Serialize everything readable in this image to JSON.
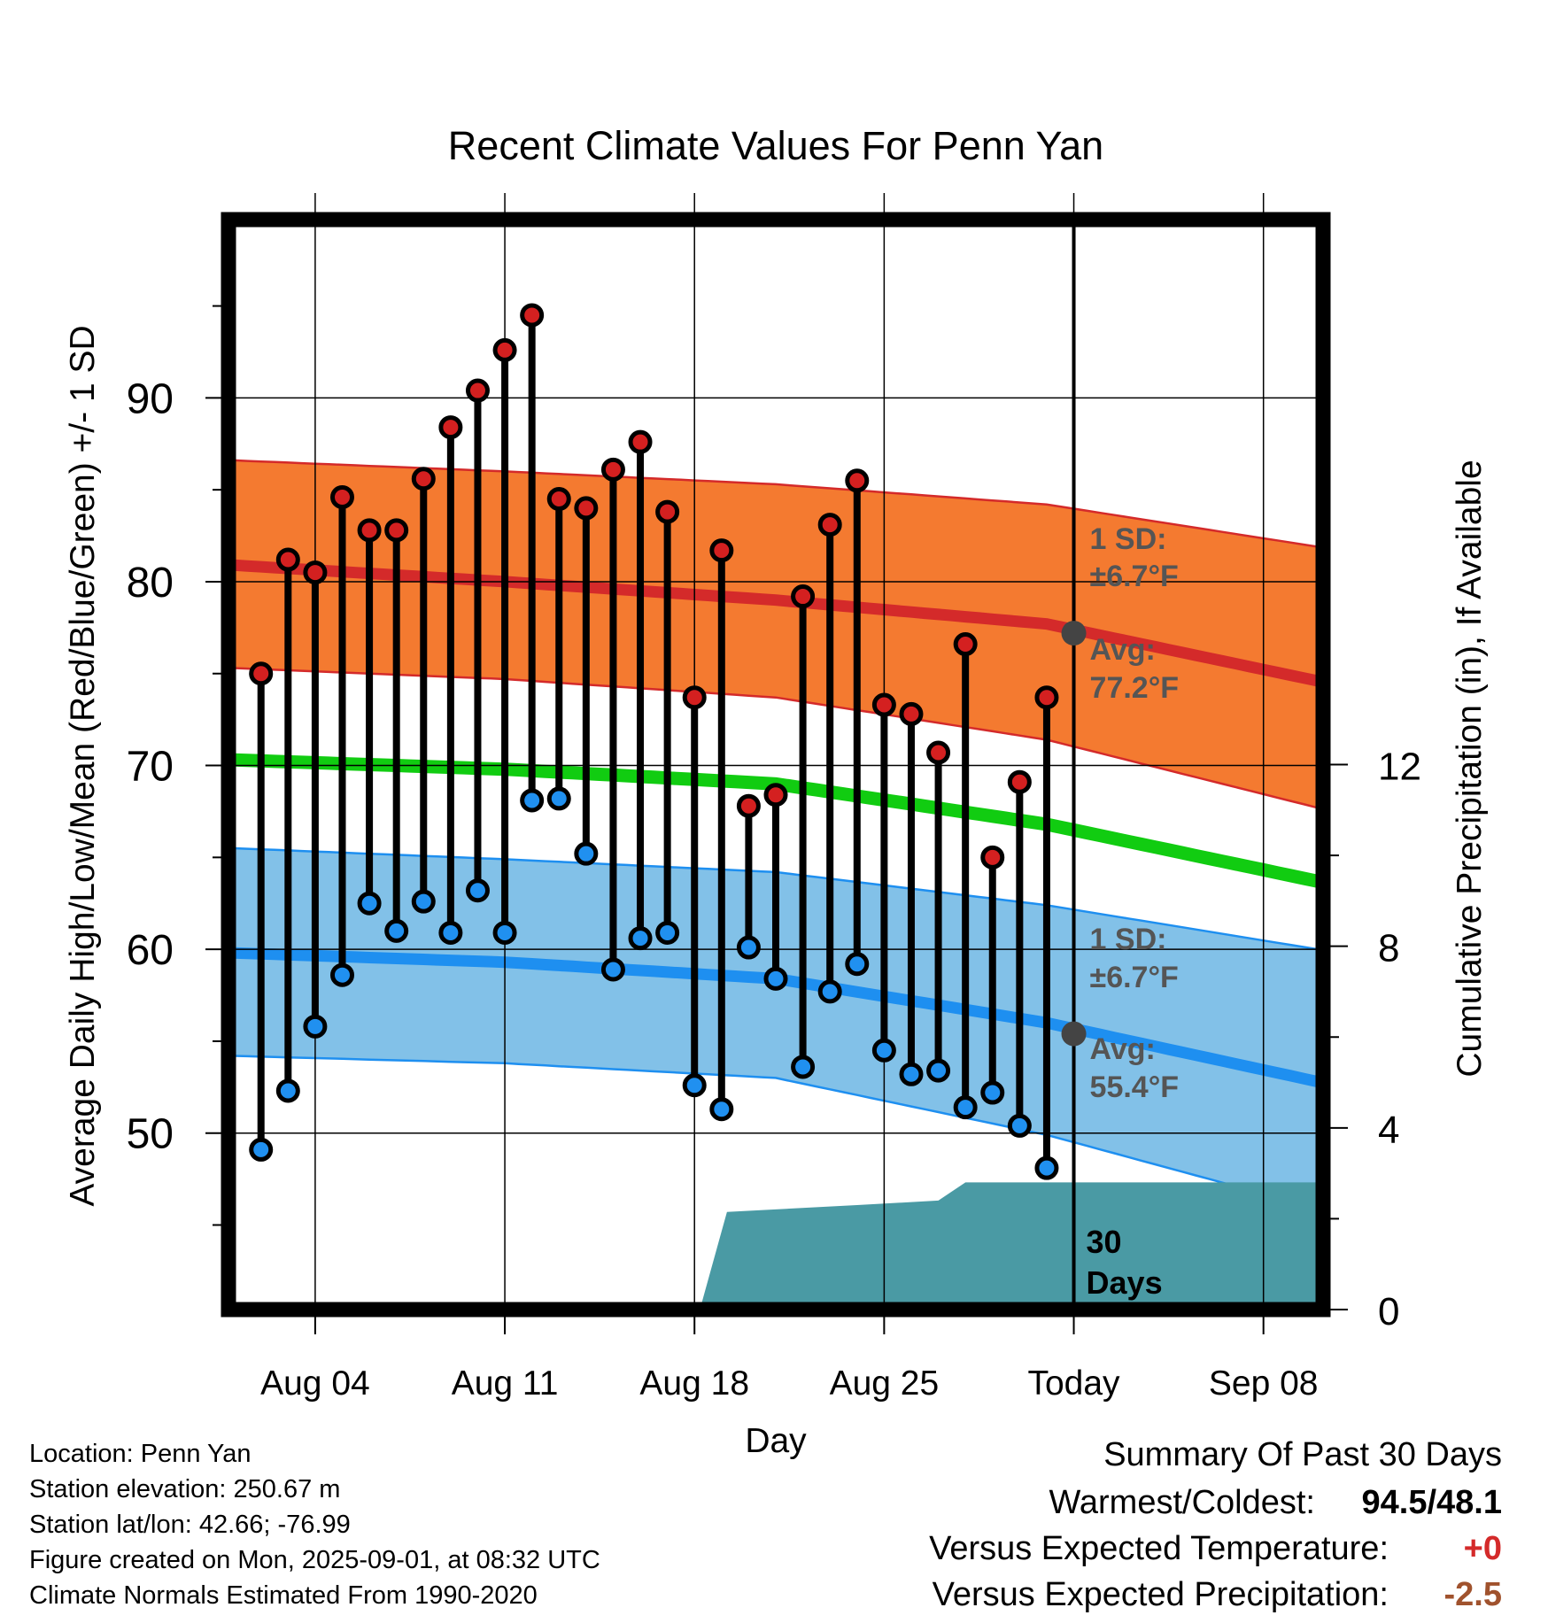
{
  "chart_data": {
    "type": "line",
    "title": "Recent Climate Values For Penn Yan",
    "xlabel": "Day",
    "ylabel": "Average Daily High/Low/Mean (Red/Blue/Green) +/- 1 SD",
    "y2label": "Cumulative Precipitation (in), If Available",
    "x_tick_labels": [
      "Aug 04",
      "Aug 11",
      "Aug 18",
      "Aug 25",
      "Today",
      "Sep 08"
    ],
    "x_tick_days": [
      4,
      11,
      18,
      25,
      32,
      39
    ],
    "xlim": [
      0.8,
      41.2
    ],
    "y_ticks": [
      50,
      60,
      70,
      80,
      90
    ],
    "ylim": [
      40.4,
      99.7
    ],
    "y_grid": [
      50,
      60,
      70,
      80,
      90
    ],
    "y2_ticks": [
      0,
      4,
      8,
      12
    ],
    "y2lim": [
      0,
      24
    ],
    "today_day": 32,
    "today_label_lines": [
      "30",
      "Days"
    ],
    "days": [
      2,
      3,
      4,
      5,
      6,
      7,
      8,
      9,
      10,
      11,
      12,
      13,
      14,
      15,
      16,
      17,
      18,
      19,
      20,
      21,
      22,
      23,
      24,
      25,
      26,
      27,
      28,
      29,
      30,
      31
    ],
    "daily_high": [
      75.0,
      81.2,
      80.5,
      84.6,
      82.8,
      82.8,
      85.6,
      88.4,
      90.4,
      92.6,
      94.5,
      84.5,
      84.0,
      86.1,
      87.6,
      83.8,
      73.7,
      81.7,
      67.8,
      68.4,
      79.2,
      83.1,
      85.5,
      73.3,
      72.8,
      70.7,
      76.6,
      65.0,
      69.1,
      73.7
    ],
    "daily_low": [
      49.1,
      52.3,
      55.8,
      58.6,
      62.5,
      61.0,
      62.6,
      60.9,
      63.2,
      60.9,
      68.1,
      68.2,
      65.2,
      58.9,
      60.6,
      60.9,
      52.6,
      51.3,
      60.1,
      58.4,
      53.6,
      57.7,
      59.2,
      54.5,
      53.2,
      53.4,
      51.4,
      52.2,
      50.4,
      48.1
    ],
    "normal_high": {
      "x": [
        1,
        11,
        21,
        31,
        41
      ],
      "avg": [
        80.9,
        80.0,
        79.0,
        77.7,
        74.6
      ],
      "upper": [
        86.6,
        86.0,
        85.3,
        84.2,
        81.9
      ],
      "lower": [
        75.3,
        74.7,
        73.7,
        71.4,
        67.7
      ]
    },
    "normal_low": {
      "x": [
        1,
        11,
        21,
        31,
        41
      ],
      "avg": [
        59.8,
        59.3,
        58.4,
        56.0,
        52.8
      ],
      "upper": [
        65.5,
        64.9,
        64.2,
        62.4,
        60.0
      ],
      "lower": [
        54.2,
        53.8,
        53.0,
        49.9,
        45.9
      ]
    },
    "normal_mean": {
      "x": [
        1,
        11,
        21,
        31,
        41
      ],
      "avg": [
        70.3,
        69.8,
        69.0,
        66.8,
        63.7
      ]
    },
    "precip_cumulative": {
      "x": [
        18.2,
        19.2,
        24.0,
        27.0,
        28.0,
        41.0
      ],
      "y": [
        0.0,
        2.15,
        2.3,
        2.4,
        2.8,
        2.8
      ]
    },
    "annotations": {
      "high_sd": [
        "1 SD:",
        "±6.7°F"
      ],
      "high_avg": [
        "Avg:",
        "77.2°F"
      ],
      "low_sd": [
        "1 SD:",
        "±6.7°F"
      ],
      "low_avg": [
        "Avg:",
        "55.4°F"
      ],
      "today_high_avg": 77.2,
      "today_low_avg": 55.4
    },
    "colors": {
      "high_band": "#f47a30",
      "high_line": "#d42a2a",
      "low_band": "#82c1e8",
      "low_line": "#1e8ff0",
      "mean_line": "#11cc11",
      "precip": "#4a9aa4",
      "high_dot": "#d42020",
      "low_dot": "#2090f0",
      "annotation_text": "#555555",
      "today_marker": "#444444"
    }
  },
  "footer": {
    "lines": [
      "Location: Penn Yan",
      "Station elevation: 250.67 m",
      "Station lat/lon: 42.66; -76.99",
      "Figure created on Mon, 2025-09-01, at 08:32 UTC",
      "Climate Normals Estimated From 1990-2020"
    ]
  },
  "summary": {
    "title": "Summary Of Past 30 Days",
    "warm_cold_label": "Warmest/Coldest:",
    "warm_cold_value": "94.5/48.1",
    "temp_label": "Versus Expected Temperature:",
    "temp_value": "+0",
    "temp_color": "#d42a2a",
    "precip_label": "Versus Expected Precipitation:",
    "precip_value": "-2.5",
    "precip_color": "#a0522d"
  }
}
